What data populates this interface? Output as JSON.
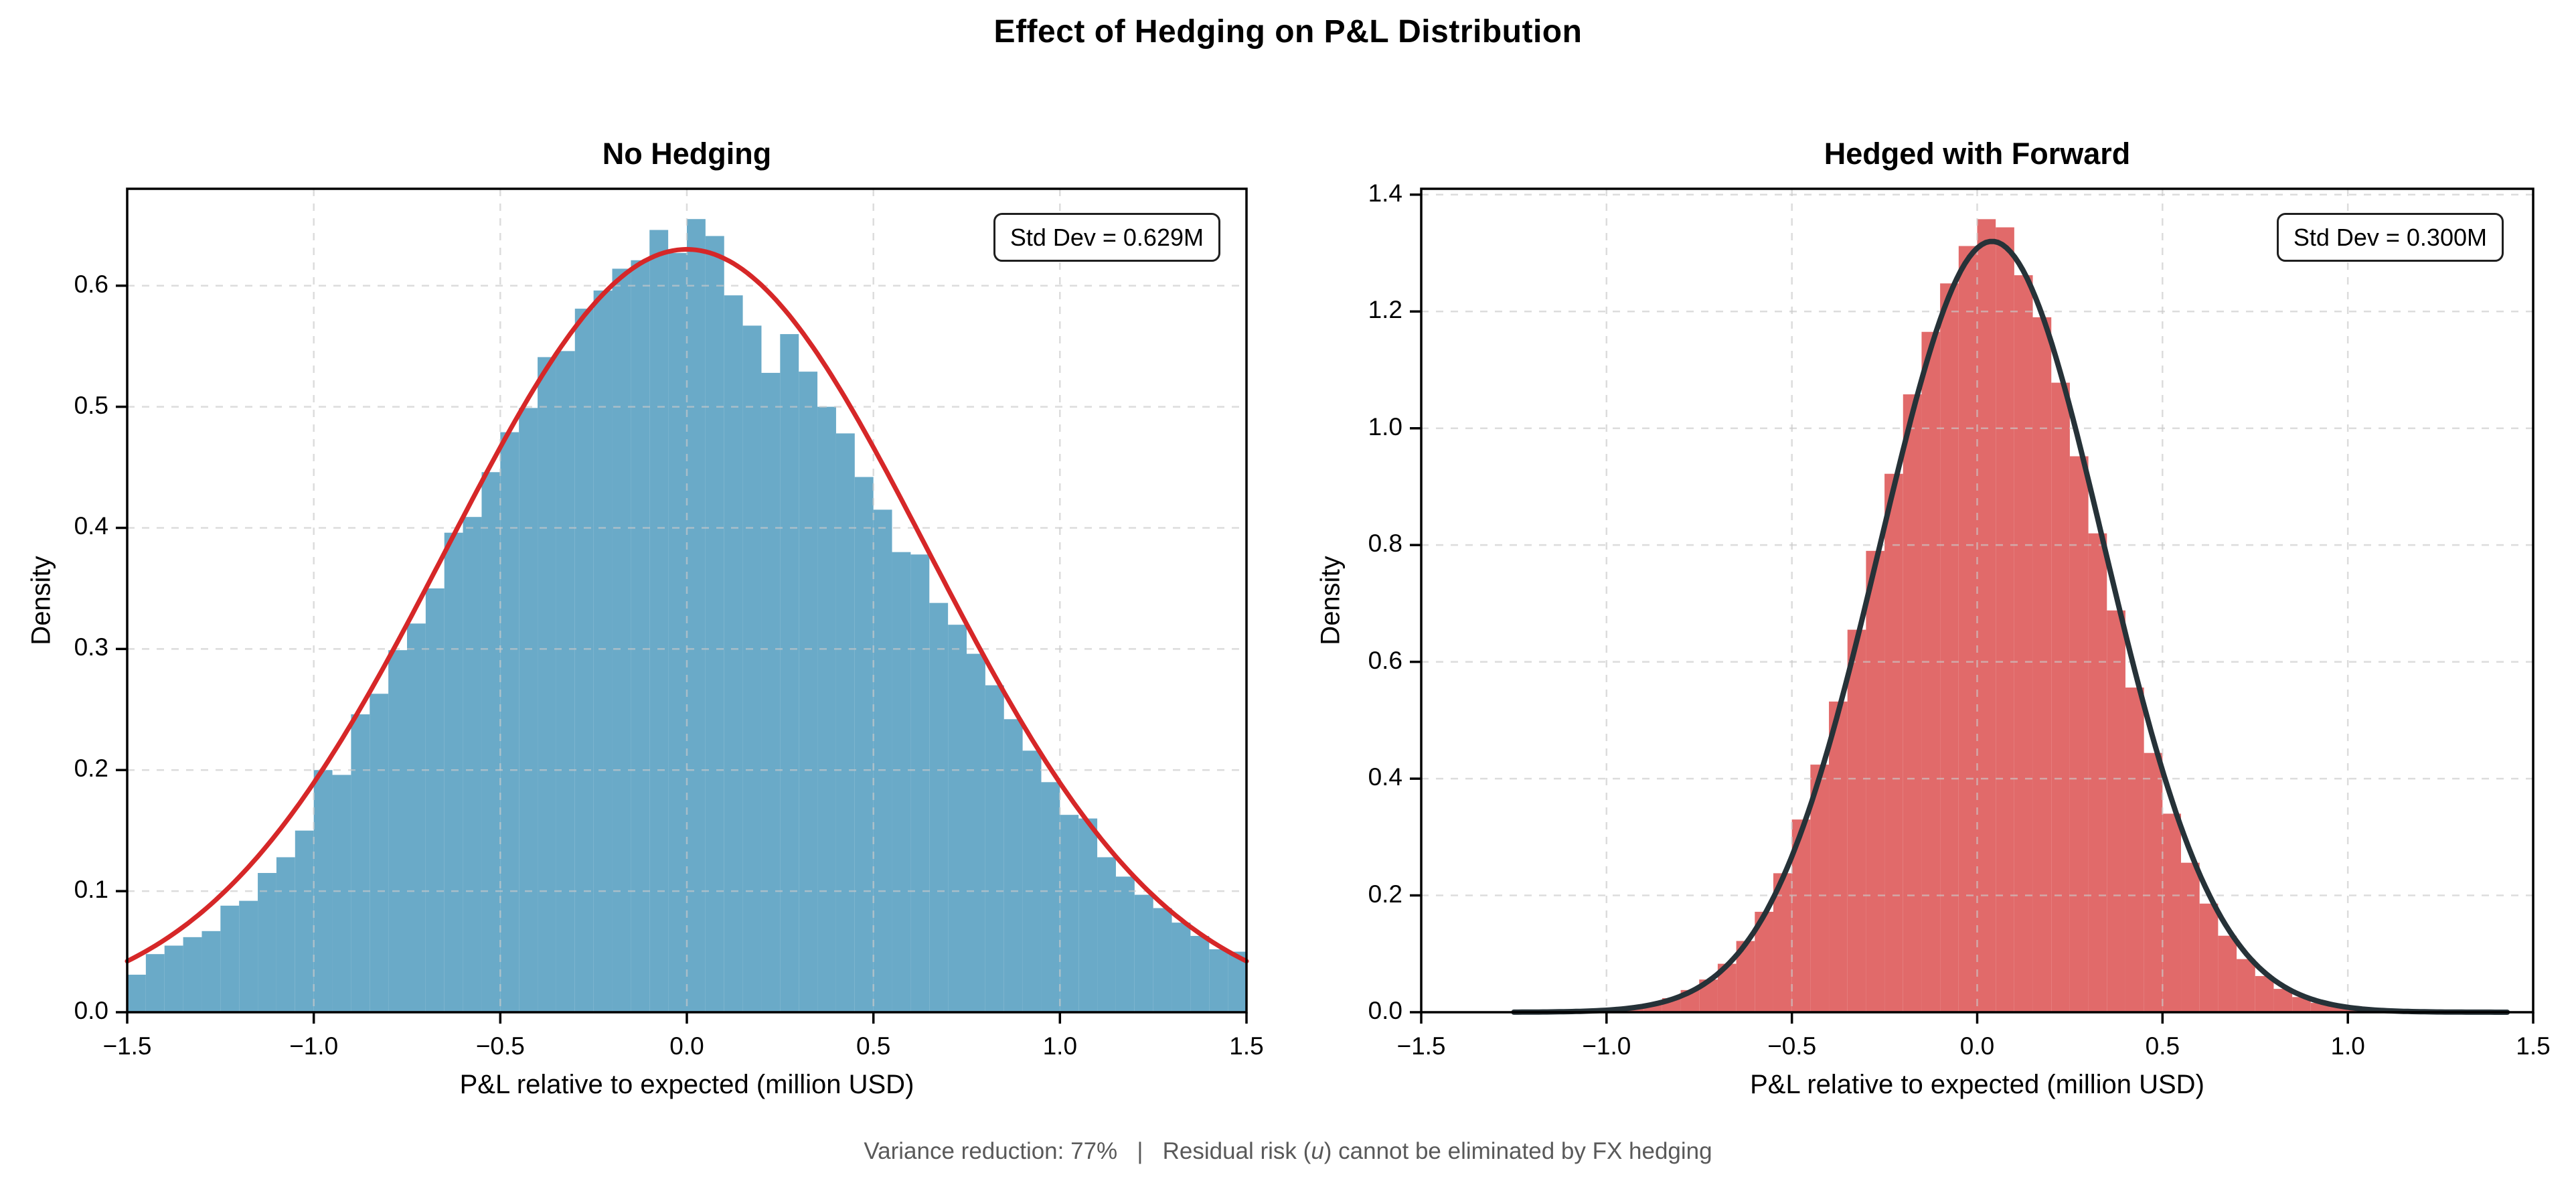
{
  "figure": {
    "suptitle": "Effect of Hedging on P&L Distribution",
    "footnote_prefix": "Variance reduction: 77%   |   Residual risk (",
    "footnote_italic": "u",
    "footnote_suffix": ") cannot be eliminated by FX hedging"
  },
  "chart_data": [
    {
      "type": "histogram",
      "panel": "left",
      "title": "No Hedging",
      "xlabel": "P&L relative to expected (million USD)",
      "ylabel": "Density",
      "annotation": "Std Dev = 0.629M",
      "std_dev_million_usd": 0.629,
      "xlim": [
        -1.5,
        1.5
      ],
      "ylim": [
        0,
        0.68
      ],
      "x_ticks": [
        -1.5,
        -1.0,
        -0.5,
        0.0,
        0.5,
        1.0,
        1.5
      ],
      "x_tick_labels": [
        "−1.5",
        "−1.0",
        "−0.5",
        "0.0",
        "0.5",
        "1.0",
        "1.5"
      ],
      "y_ticks": [
        0.0,
        0.1,
        0.2,
        0.3,
        0.4,
        0.5,
        0.6
      ],
      "y_tick_labels": [
        "0.0",
        "0.1",
        "0.2",
        "0.3",
        "0.4",
        "0.5",
        "0.6"
      ],
      "grid": true,
      "bin_width": 0.05,
      "bin_centers": [
        -1.475,
        -1.425,
        -1.375,
        -1.325,
        -1.275,
        -1.225,
        -1.175,
        -1.125,
        -1.075,
        -1.025,
        -0.975,
        -0.925,
        -0.875,
        -0.825,
        -0.775,
        -0.725,
        -0.675,
        -0.625,
        -0.575,
        -0.525,
        -0.475,
        -0.425,
        -0.375,
        -0.325,
        -0.275,
        -0.225,
        -0.175,
        -0.125,
        -0.075,
        -0.025,
        0.025,
        0.075,
        0.125,
        0.175,
        0.225,
        0.275,
        0.325,
        0.375,
        0.425,
        0.475,
        0.525,
        0.575,
        0.625,
        0.675,
        0.725,
        0.775,
        0.825,
        0.875,
        0.925,
        0.975,
        1.025,
        1.075,
        1.125,
        1.175,
        1.225,
        1.275,
        1.325,
        1.375,
        1.425,
        1.475
      ],
      "densities": [
        0.031,
        0.048,
        0.055,
        0.062,
        0.067,
        0.088,
        0.092,
        0.115,
        0.128,
        0.15,
        0.2,
        0.196,
        0.246,
        0.263,
        0.299,
        0.321,
        0.35,
        0.396,
        0.409,
        0.446,
        0.479,
        0.499,
        0.541,
        0.546,
        0.581,
        0.596,
        0.614,
        0.621,
        0.646,
        0.627,
        0.655,
        0.641,
        0.592,
        0.567,
        0.528,
        0.56,
        0.529,
        0.5,
        0.478,
        0.442,
        0.415,
        0.38,
        0.378,
        0.338,
        0.32,
        0.296,
        0.27,
        0.242,
        0.216,
        0.19,
        0.163,
        0.16,
        0.128,
        0.112,
        0.097,
        0.086,
        0.074,
        0.063,
        0.052,
        0.05
      ],
      "kde": {
        "shape": "gaussian",
        "mean": 0.0,
        "sd": 0.645,
        "peak": 0.63,
        "draw_from": -1.5,
        "draw_to": 1.5,
        "linewidth": 7
      },
      "colors": {
        "bars": "#6aaac8",
        "curve": "#d62728",
        "grid": "#c9c9c9",
        "spine": "#000000"
      }
    },
    {
      "type": "histogram",
      "panel": "right",
      "title": "Hedged with Forward",
      "xlabel": "P&L relative to expected (million USD)",
      "ylabel": "Density",
      "annotation": "Std Dev = 0.300M",
      "std_dev_million_usd": 0.3,
      "xlim": [
        -1.5,
        1.5
      ],
      "ylim": [
        0,
        1.41
      ],
      "x_ticks": [
        -1.5,
        -1.0,
        -0.5,
        0.0,
        0.5,
        1.0,
        1.5
      ],
      "x_tick_labels": [
        "−1.5",
        "−1.0",
        "−0.5",
        "0.0",
        "0.5",
        "1.0",
        "1.5"
      ],
      "y_ticks": [
        0.0,
        0.2,
        0.4,
        0.6,
        0.8,
        1.0,
        1.2,
        1.4
      ],
      "y_tick_labels": [
        "0.0",
        "0.2",
        "0.4",
        "0.6",
        "0.8",
        "1.0",
        "1.2",
        "1.4"
      ],
      "grid": true,
      "bin_width": 0.05,
      "bin_centers": [
        -1.475,
        -1.425,
        -1.375,
        -1.325,
        -1.275,
        -1.225,
        -1.175,
        -1.125,
        -1.075,
        -1.025,
        -0.975,
        -0.925,
        -0.875,
        -0.825,
        -0.775,
        -0.725,
        -0.675,
        -0.625,
        -0.575,
        -0.525,
        -0.475,
        -0.425,
        -0.375,
        -0.325,
        -0.275,
        -0.225,
        -0.175,
        -0.125,
        -0.075,
        -0.025,
        0.025,
        0.075,
        0.125,
        0.175,
        0.225,
        0.275,
        0.325,
        0.375,
        0.425,
        0.475,
        0.525,
        0.575,
        0.625,
        0.675,
        0.725,
        0.775,
        0.825,
        0.875,
        0.925,
        0.975,
        1.025,
        1.075,
        1.125,
        1.175,
        1.225,
        1.275,
        1.325,
        1.375,
        1.425,
        1.475
      ],
      "densities": [
        0,
        0,
        0,
        0,
        0,
        0,
        0.001,
        0.002,
        0.003,
        0.004,
        0.006,
        0.009,
        0.014,
        0.024,
        0.038,
        0.056,
        0.083,
        0.122,
        0.172,
        0.238,
        0.33,
        0.424,
        0.532,
        0.655,
        0.79,
        0.922,
        1.058,
        1.165,
        1.248,
        1.312,
        1.358,
        1.344,
        1.262,
        1.19,
        1.078,
        0.952,
        0.82,
        0.688,
        0.556,
        0.444,
        0.34,
        0.256,
        0.186,
        0.131,
        0.091,
        0.062,
        0.04,
        0.026,
        0.016,
        0.01,
        0.006,
        0.003,
        0.002,
        0,
        0,
        0,
        0,
        0,
        0,
        0
      ],
      "kde": {
        "shape": "gaussian",
        "mean": 0.04,
        "sd": 0.302,
        "peak": 1.32,
        "draw_from": -1.25,
        "draw_to": 1.43,
        "linewidth": 8
      },
      "colors": {
        "bars": "#e16a6a",
        "curve": "#263238",
        "grid": "#c9c9c9",
        "spine": "#000000"
      }
    }
  ]
}
